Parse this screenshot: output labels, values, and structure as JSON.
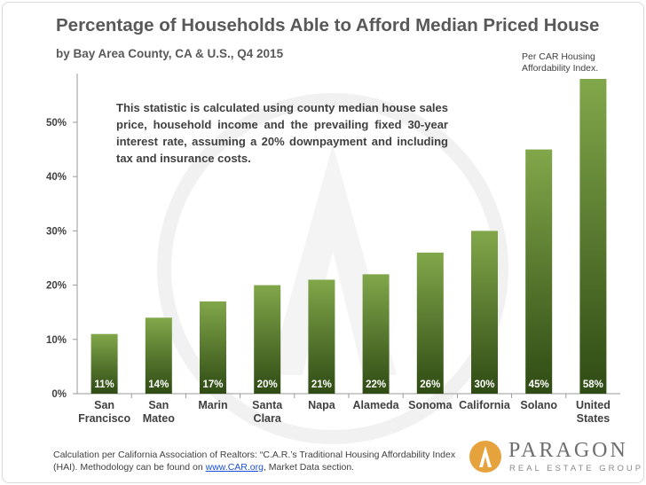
{
  "header": {
    "title": "Percentage of Households Able to Afford Median Priced House",
    "subtitle": "by Bay Area County, CA & U.S., Q4 2015",
    "source_note": [
      "Per CAR Housing",
      "Affordability Index."
    ]
  },
  "note": "This statistic is calculated using county median house sales price, household income and the prevailing fixed 30-year interest rate, assuming a 20% downpayment and including tax and insurance costs.",
  "footnote": {
    "line1": "Calculation per California Association of Realtors: “C.A.R.’s Traditional Housing Affordability Index",
    "line2_pre": "(HAI). Methodology can be found on ",
    "link": "www.CAR.org",
    "line2_post": ", Market Data section."
  },
  "logo": {
    "name": "PARAGON",
    "tagline": "REAL ESTATE GROUP"
  },
  "colors": {
    "bar_top": "#81a74a",
    "bar_bottom": "#2f4b14",
    "axis": "#9a9a9a",
    "label": "#404040",
    "bar_label": "#ffffff"
  },
  "chart_data": {
    "type": "bar",
    "title": "Percentage of Households Able to Afford Median Priced House",
    "xlabel": "",
    "ylabel": "",
    "ylim": [
      0,
      58
    ],
    "yticks": [
      0,
      10,
      20,
      30,
      40,
      50
    ],
    "ytick_labels": [
      "0%",
      "10%",
      "20%",
      "30%",
      "40%",
      "50%"
    ],
    "categories": [
      [
        "San",
        "Francisco"
      ],
      [
        "San",
        "Mateo"
      ],
      [
        "Marin"
      ],
      [
        "Santa",
        "Clara"
      ],
      [
        "Napa"
      ],
      [
        "Alameda"
      ],
      [
        "Sonoma"
      ],
      [
        "California"
      ],
      [
        "Solano"
      ],
      [
        "United",
        "States"
      ]
    ],
    "values": [
      11,
      14,
      17,
      20,
      21,
      22,
      26,
      30,
      45,
      58
    ],
    "data_labels": [
      "11%",
      "14%",
      "17%",
      "20%",
      "21%",
      "22%",
      "26%",
      "30%",
      "45%",
      "58%"
    ],
    "grid": false,
    "legend": "none"
  }
}
